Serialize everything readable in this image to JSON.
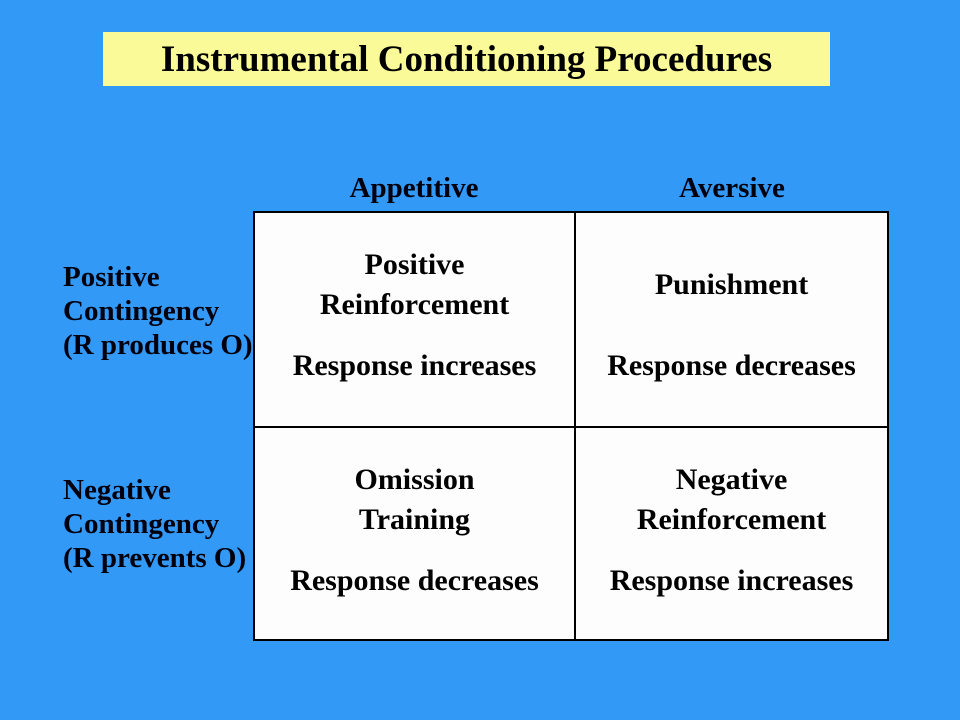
{
  "slide": {
    "title": "Instrumental Conditioning Procedures"
  },
  "colors": {
    "background": "#3399f7",
    "title_background": "#fafa99",
    "table_background": "#fdfdfd",
    "border": "#000000",
    "text": "#000000"
  },
  "matrix": {
    "column_headers": [
      "Appetitive",
      "Aversive"
    ],
    "row_headers": [
      "Positive\nContingency\n(R produces O)",
      "Negative\nContingency\n(R prevents O)"
    ],
    "cells": [
      {
        "procedure": "Positive\nReinforcement",
        "effect": "Response increases"
      },
      {
        "procedure": "Punishment",
        "effect": "Response decreases"
      },
      {
        "procedure": "Omission\nTraining",
        "effect": "Response decreases"
      },
      {
        "procedure": "Negative\nReinforcement",
        "effect": "Response increases"
      }
    ]
  }
}
